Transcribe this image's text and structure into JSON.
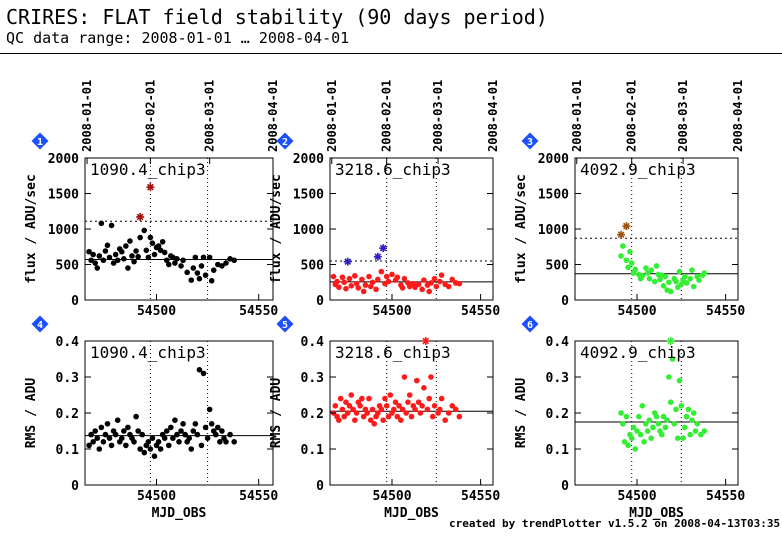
{
  "header": {
    "title": "CRIRES: FLAT field stability (90 days period)",
    "subtitle": "QC data range: 2008-01-01 … 2008-04-01"
  },
  "footer": {
    "credit": "created by trendPlotter v1.5.2 on 2008-04-13T03:35:15"
  },
  "colors": {
    "black": "#000000",
    "red": "#ff1a1a",
    "green": "#33ee33",
    "badge": "#1a4fff",
    "outlier_chip1": "#a01010",
    "outlier_chip2": "#3020c0",
    "outlier_chip3": "#a0500a"
  },
  "chart_data": [
    {
      "type": "scatter",
      "panel": 1,
      "badge": "1",
      "label": "1090.4_chip3",
      "ylabel": "flux / ADU/sec",
      "xlabel": "",
      "color": "#000000",
      "outlier_color": "#a01010",
      "xlim": [
        54465,
        54557
      ],
      "ylim": [
        0,
        2000
      ],
      "xticks": [
        54500,
        54550
      ],
      "yticks": [
        0,
        500,
        1000,
        1500,
        2000
      ],
      "top_dates": [
        "2008-01-01",
        "2008-02-01",
        "2008-03-01",
        "2008-04-01"
      ],
      "mean": 570,
      "threshold": 1110,
      "vlines": [
        54497,
        54525
      ],
      "x": [
        54467,
        54468,
        54469,
        54470,
        54471,
        54472,
        54473,
        54474,
        54475,
        54476,
        54477,
        54478,
        54479,
        54480,
        54481,
        54482,
        54483,
        54484,
        54485,
        54486,
        54487,
        54488,
        54489,
        54490,
        54491,
        54492,
        54494,
        54495,
        54496,
        54497,
        54498,
        54499,
        54500,
        54501,
        54502,
        54503,
        54504,
        54505,
        54506,
        54507,
        54508,
        54509,
        54510,
        54512,
        54513,
        54515,
        54517,
        54518,
        54519,
        54520,
        54521,
        54522,
        54523,
        54524,
        54526,
        54527,
        54528,
        54530,
        54532,
        54534,
        54536,
        54538
      ],
      "y": [
        680,
        560,
        640,
        520,
        450,
        620,
        1080,
        560,
        690,
        770,
        600,
        1050,
        520,
        640,
        560,
        720,
        680,
        580,
        760,
        450,
        830,
        620,
        540,
        690,
        610,
        880,
        980,
        700,
        600,
        880,
        800,
        640,
        740,
        760,
        700,
        820,
        670,
        560,
        500,
        620,
        600,
        520,
        580,
        480,
        560,
        390,
        280,
        450,
        600,
        380,
        300,
        480,
        600,
        350,
        600,
        270,
        420,
        500,
        480,
        520,
        580,
        560
      ],
      "outliers_x": [
        54492,
        54497
      ],
      "outliers_y": [
        1170,
        1590
      ]
    },
    {
      "type": "scatter",
      "panel": 2,
      "badge": "2",
      "label": "3218.6_chip3",
      "ylabel": "flux / ADU/sec",
      "xlabel": "",
      "color": "#ff1a1a",
      "outlier_color": "#3020c0",
      "xlim": [
        54465,
        54557
      ],
      "ylim": [
        0,
        2000
      ],
      "xticks": [
        54500,
        54550
      ],
      "yticks": [
        0,
        500,
        1000,
        1500,
        2000
      ],
      "top_dates": [
        "2008-01-01",
        "2008-02-01",
        "2008-03-01",
        "2008-04-01"
      ],
      "mean": 255,
      "threshold": 550,
      "vlines": [
        54497,
        54525
      ],
      "x": [
        54467,
        54468,
        54469,
        54470,
        54472,
        54473,
        54474,
        54476,
        54477,
        54479,
        54480,
        54481,
        54483,
        54484,
        54485,
        54487,
        54488,
        54489,
        54491,
        54492,
        54494,
        54496,
        54497,
        54498,
        54500,
        54502,
        54503,
        54505,
        54506,
        54507,
        54509,
        54510,
        54512,
        54513,
        54515,
        54517,
        54518,
        54520,
        54521,
        54522,
        54524,
        54525,
        54527,
        54528,
        54530,
        54532,
        54534,
        54536,
        54538
      ],
      "y": [
        330,
        220,
        260,
        180,
        320,
        250,
        160,
        300,
        200,
        340,
        230,
        170,
        290,
        120,
        210,
        330,
        190,
        250,
        150,
        290,
        400,
        230,
        330,
        260,
        360,
        280,
        320,
        210,
        170,
        300,
        240,
        190,
        230,
        180,
        220,
        150,
        280,
        210,
        120,
        240,
        300,
        190,
        260,
        350,
        220,
        190,
        290,
        240,
        230
      ],
      "outliers_x": [
        54475,
        54492,
        54495
      ],
      "outliers_y": [
        540,
        610,
        730
      ]
    },
    {
      "type": "scatter",
      "panel": 3,
      "badge": "3",
      "label": "4092.9_chip3",
      "ylabel": "flux / ADU/sec",
      "xlabel": "",
      "color": "#33ee33",
      "outlier_color": "#a0500a",
      "xlim": [
        54465,
        54557
      ],
      "ylim": [
        0,
        2000
      ],
      "xticks": [
        54500,
        54550
      ],
      "yticks": [
        0,
        500,
        1000,
        1500,
        2000
      ],
      "top_dates": [
        "2008-01-01",
        "2008-02-01",
        "2008-03-01",
        "2008-04-01"
      ],
      "mean": 370,
      "threshold": 870,
      "vlines": [
        54497,
        54525
      ],
      "x": [
        54491,
        54492,
        54494,
        54495,
        54496,
        54497,
        54498,
        54499,
        54501,
        54502,
        54503,
        54505,
        54506,
        54507,
        54508,
        54510,
        54511,
        54512,
        54513,
        54514,
        54515,
        54516,
        54517,
        54518,
        54519,
        54521,
        54522,
        54523,
        54524,
        54525,
        54526,
        54527,
        54528,
        54530,
        54531,
        54532,
        54534,
        54535,
        54537,
        54538
      ],
      "y": [
        620,
        760,
        560,
        460,
        680,
        520,
        380,
        430,
        360,
        300,
        340,
        450,
        380,
        300,
        420,
        260,
        480,
        360,
        290,
        350,
        200,
        330,
        140,
        250,
        120,
        300,
        260,
        180,
        400,
        220,
        280,
        330,
        240,
        300,
        420,
        190,
        330,
        280,
        350,
        380
      ],
      "outliers_x": [
        54491,
        54494
      ],
      "outliers_y": [
        920,
        1040
      ]
    },
    {
      "type": "scatter",
      "panel": 4,
      "badge": "4",
      "label": "1090.4_chip3",
      "ylabel": "RMS / ADU",
      "xlabel": "MJD_OBS",
      "color": "#000000",
      "xlim": [
        54465,
        54557
      ],
      "ylim": [
        0,
        0.4
      ],
      "xticks": [
        54500,
        54550
      ],
      "yticks": [
        0,
        0.1,
        0.2,
        0.3,
        0.4
      ],
      "mean": 0.137,
      "vlines": [
        54497,
        54525
      ],
      "x": [
        54467,
        54468,
        54469,
        54470,
        54471,
        54472,
        54473,
        54474,
        54475,
        54476,
        54477,
        54478,
        54479,
        54480,
        54481,
        54482,
        54483,
        54484,
        54485,
        54486,
        54487,
        54488,
        54489,
        54490,
        54491,
        54492,
        54493,
        54494,
        54495,
        54496,
        54497,
        54498,
        54499,
        54500,
        54501,
        54502,
        54503,
        54504,
        54505,
        54506,
        54507,
        54508,
        54509,
        54510,
        54511,
        54512,
        54513,
        54514,
        54515,
        54516,
        54517,
        54518,
        54519,
        54520,
        54521,
        54522,
        54523,
        54524,
        54525,
        54526,
        54527,
        54528,
        54529,
        54530,
        54531,
        54532,
        54533,
        54534,
        54536,
        54538
      ],
      "y": [
        0.11,
        0.14,
        0.12,
        0.15,
        0.13,
        0.1,
        0.16,
        0.12,
        0.14,
        0.17,
        0.13,
        0.11,
        0.15,
        0.14,
        0.18,
        0.12,
        0.13,
        0.15,
        0.11,
        0.16,
        0.14,
        0.13,
        0.12,
        0.19,
        0.15,
        0.1,
        0.14,
        0.09,
        0.11,
        0.12,
        0.1,
        0.13,
        0.08,
        0.11,
        0.12,
        0.1,
        0.14,
        0.13,
        0.15,
        0.11,
        0.16,
        0.13,
        0.18,
        0.14,
        0.12,
        0.15,
        0.17,
        0.14,
        0.12,
        0.13,
        0.1,
        0.15,
        0.17,
        0.14,
        0.32,
        0.11,
        0.31,
        0.16,
        0.13,
        0.21,
        0.17,
        0.15,
        0.14,
        0.16,
        0.12,
        0.15,
        0.13,
        0.12,
        0.14,
        0.12
      ],
      "outliers_x": [],
      "outliers_y": []
    },
    {
      "type": "scatter",
      "panel": 5,
      "badge": "5",
      "label": "3218.6_chip3",
      "ylabel": "RMS / ADU",
      "xlabel": "MJD_OBS",
      "color": "#ff1a1a",
      "xlim": [
        54465,
        54557
      ],
      "ylim": [
        0,
        0.4
      ],
      "xticks": [
        54500,
        54550
      ],
      "yticks": [
        0,
        0.1,
        0.2,
        0.3,
        0.4
      ],
      "mean": 0.205,
      "vlines": [
        54497,
        54525
      ],
      "x": [
        54467,
        54468,
        54469,
        54470,
        54471,
        54472,
        54473,
        54474,
        54475,
        54476,
        54477,
        54478,
        54479,
        54480,
        54481,
        54482,
        54483,
        54484,
        54485,
        54486,
        54487,
        54488,
        54489,
        54490,
        54491,
        54492,
        54493,
        54494,
        54495,
        54496,
        54497,
        54498,
        54499,
        54500,
        54501,
        54502,
        54503,
        54504,
        54505,
        54506,
        54507,
        54508,
        54509,
        54510,
        54511,
        54512,
        54513,
        54514,
        54515,
        54516,
        54517,
        54518,
        54520,
        54521,
        54522,
        54523,
        54524,
        54526,
        54527,
        54528,
        54530,
        54532,
        54534,
        54536,
        54538
      ],
      "y": [
        0.2,
        0.22,
        0.19,
        0.18,
        0.24,
        0.21,
        0.19,
        0.23,
        0.2,
        0.22,
        0.25,
        0.21,
        0.18,
        0.2,
        0.23,
        0.22,
        0.24,
        0.19,
        0.21,
        0.2,
        0.24,
        0.18,
        0.21,
        0.17,
        0.19,
        0.2,
        0.22,
        0.21,
        0.18,
        0.24,
        0.22,
        0.19,
        0.25,
        0.2,
        0.21,
        0.23,
        0.19,
        0.22,
        0.18,
        0.21,
        0.3,
        0.2,
        0.23,
        0.25,
        0.19,
        0.22,
        0.21,
        0.29,
        0.23,
        0.2,
        0.22,
        0.27,
        0.21,
        0.24,
        0.3,
        0.19,
        0.22,
        0.2,
        0.21,
        0.24,
        0.18,
        0.2,
        0.22,
        0.21,
        0.19
      ],
      "outliers_x": [
        54519
      ],
      "outliers_y": [
        0.4
      ]
    },
    {
      "type": "scatter",
      "panel": 6,
      "badge": "6",
      "label": "4092.9_chip3",
      "ylabel": "RMS / ADU",
      "xlabel": "MJD_OBS",
      "color": "#33ee33",
      "xlim": [
        54465,
        54557
      ],
      "ylim": [
        0,
        0.4
      ],
      "xticks": [
        54500,
        54550
      ],
      "yticks": [
        0,
        0.1,
        0.2,
        0.3,
        0.4
      ],
      "mean": 0.175,
      "vlines": [
        54497,
        54525
      ],
      "x": [
        54491,
        54492,
        54493,
        54494,
        54495,
        54496,
        54497,
        54498,
        54499,
        54500,
        54501,
        54502,
        54503,
        54504,
        54505,
        54506,
        54507,
        54508,
        54509,
        54510,
        54511,
        54512,
        54513,
        54514,
        54515,
        54516,
        54517,
        54518,
        54519,
        54520,
        54521,
        54522,
        54523,
        54524,
        54525,
        54526,
        54527,
        54528,
        54529,
        54530,
        54531,
        54532,
        54533,
        54534,
        54536,
        54538
      ],
      "y": [
        0.2,
        0.17,
        0.12,
        0.19,
        0.11,
        0.14,
        0.13,
        0.16,
        0.1,
        0.15,
        0.19,
        0.14,
        0.22,
        0.12,
        0.17,
        0.15,
        0.18,
        0.13,
        0.16,
        0.2,
        0.19,
        0.17,
        0.15,
        0.14,
        0.19,
        0.16,
        0.18,
        0.3,
        0.23,
        0.35,
        0.17,
        0.21,
        0.13,
        0.29,
        0.22,
        0.13,
        0.16,
        0.19,
        0.21,
        0.14,
        0.18,
        0.2,
        0.15,
        0.17,
        0.14,
        0.15
      ],
      "outliers_x": [
        54519
      ],
      "outliers_y": [
        0.4
      ]
    }
  ]
}
